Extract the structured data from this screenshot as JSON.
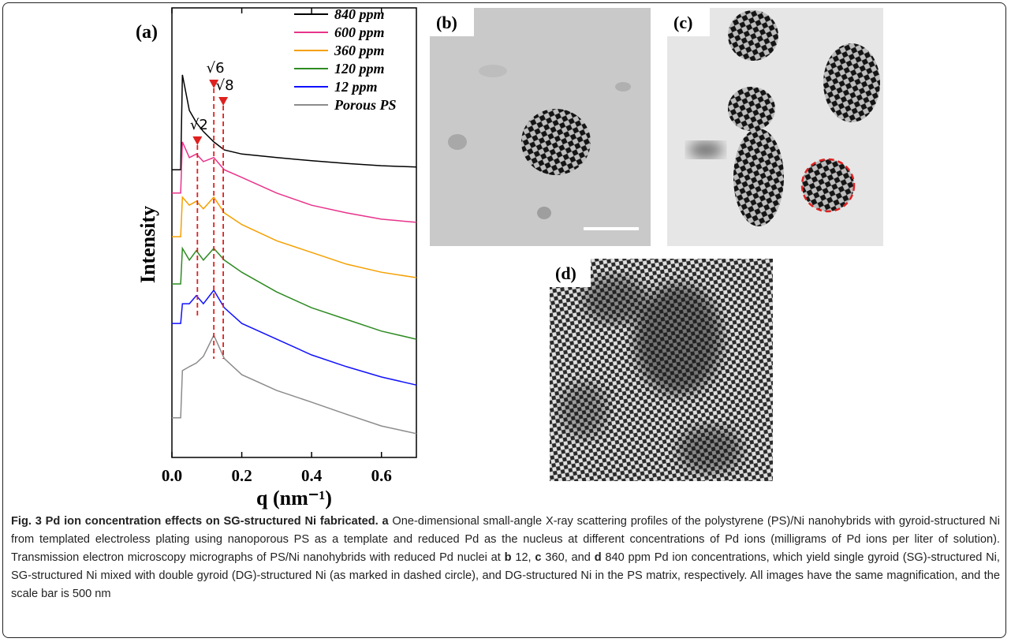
{
  "chart_data": {
    "type": "line",
    "panel_label": "(a)",
    "ylabel": "Intensity",
    "xlabel": "q (nm⁻¹)",
    "x": [
      0,
      0.025,
      0.03,
      0.05,
      0.07,
      0.09,
      0.12,
      0.15,
      0.2,
      0.3,
      0.4,
      0.5,
      0.6,
      0.7
    ],
    "xlim": [
      0,
      0.7
    ],
    "xticks": [
      {
        "value": 0,
        "label": "0.0"
      },
      0.2,
      0.4,
      0.6
    ],
    "ylim": [
      0,
      100
    ],
    "grid": false,
    "legend": "top-right",
    "series": [
      {
        "name": "840 ppm",
        "color": "#000000",
        "values": [
          64.0,
          64.0,
          85.1,
          77.2,
          74.5,
          72.5,
          70.2,
          68.4,
          67.5,
          66.7,
          66.0,
          65.4,
          64.9,
          64.6
        ]
      },
      {
        "name": "600 ppm",
        "color": "#e8338a",
        "values": [
          58.8,
          58.8,
          70.2,
          66.7,
          67.5,
          65.8,
          66.7,
          64.0,
          62.3,
          58.8,
          56.1,
          54.4,
          53.0,
          52.3
        ]
      },
      {
        "name": "360 ppm",
        "color": "#f5a000",
        "values": [
          49.1,
          49.1,
          57.9,
          56.1,
          57.0,
          55.3,
          57.9,
          54.4,
          51.8,
          48.2,
          45.6,
          43.0,
          41.2,
          40.0
        ]
      },
      {
        "name": "120 ppm",
        "color": "#2e8b22",
        "values": [
          38.6,
          38.6,
          46.5,
          43.9,
          46.0,
          43.9,
          46.5,
          43.9,
          41.2,
          36.8,
          33.3,
          30.7,
          28.1,
          26.3
        ]
      },
      {
        "name": "12 ppm",
        "color": "#1010ff",
        "values": [
          29.8,
          29.8,
          34.2,
          34.2,
          36.0,
          34.2,
          37.2,
          33.3,
          29.8,
          26.3,
          22.8,
          20.2,
          17.9,
          16.1
        ]
      },
      {
        "name": "Porous PS",
        "color": "#8c8c8c",
        "values": [
          8.8,
          8.8,
          19.3,
          20.2,
          21.0,
          22.5,
          27.2,
          22.0,
          18.4,
          14.9,
          12.3,
          9.6,
          7.0,
          5.3
        ]
      }
    ],
    "annotations": [
      {
        "text": "√2",
        "x": 0.073
      },
      {
        "text": "√6",
        "x": 0.12
      },
      {
        "text": "√8",
        "x": 0.147
      }
    ]
  },
  "panels": {
    "b": "(b)",
    "c": "(c)",
    "d": "(d)"
  },
  "caption": {
    "title": "Fig. 3 Pd ion concentration effects on SG-structured Ni fabricated.",
    "parts": [
      "a",
      " One-dimensional small-angle X-ray scattering profiles of the polystyrene (PS)/Ni nanohybrids with gyroid-structured Ni from templated electroless plating using nanoporous PS as a template and reduced Pd as the nucleus at different concentrations of Pd ions (milligrams of Pd ions per liter of solution). Transmission electron microscopy micrographs of PS/Ni nanohybrids with reduced Pd nuclei at ",
      "b",
      " 12, ",
      "c",
      " 360, and ",
      "d",
      " 840 ppm Pd ion concentrations, which yield single gyroid (SG)-structured Ni, SG-structured Ni mixed with double gyroid (DG)-structured Ni (as marked in dashed circle), and DG-structured Ni in the PS matrix, respectively. All images have the same magnification, and the scale bar is 500 nm"
    ]
  }
}
